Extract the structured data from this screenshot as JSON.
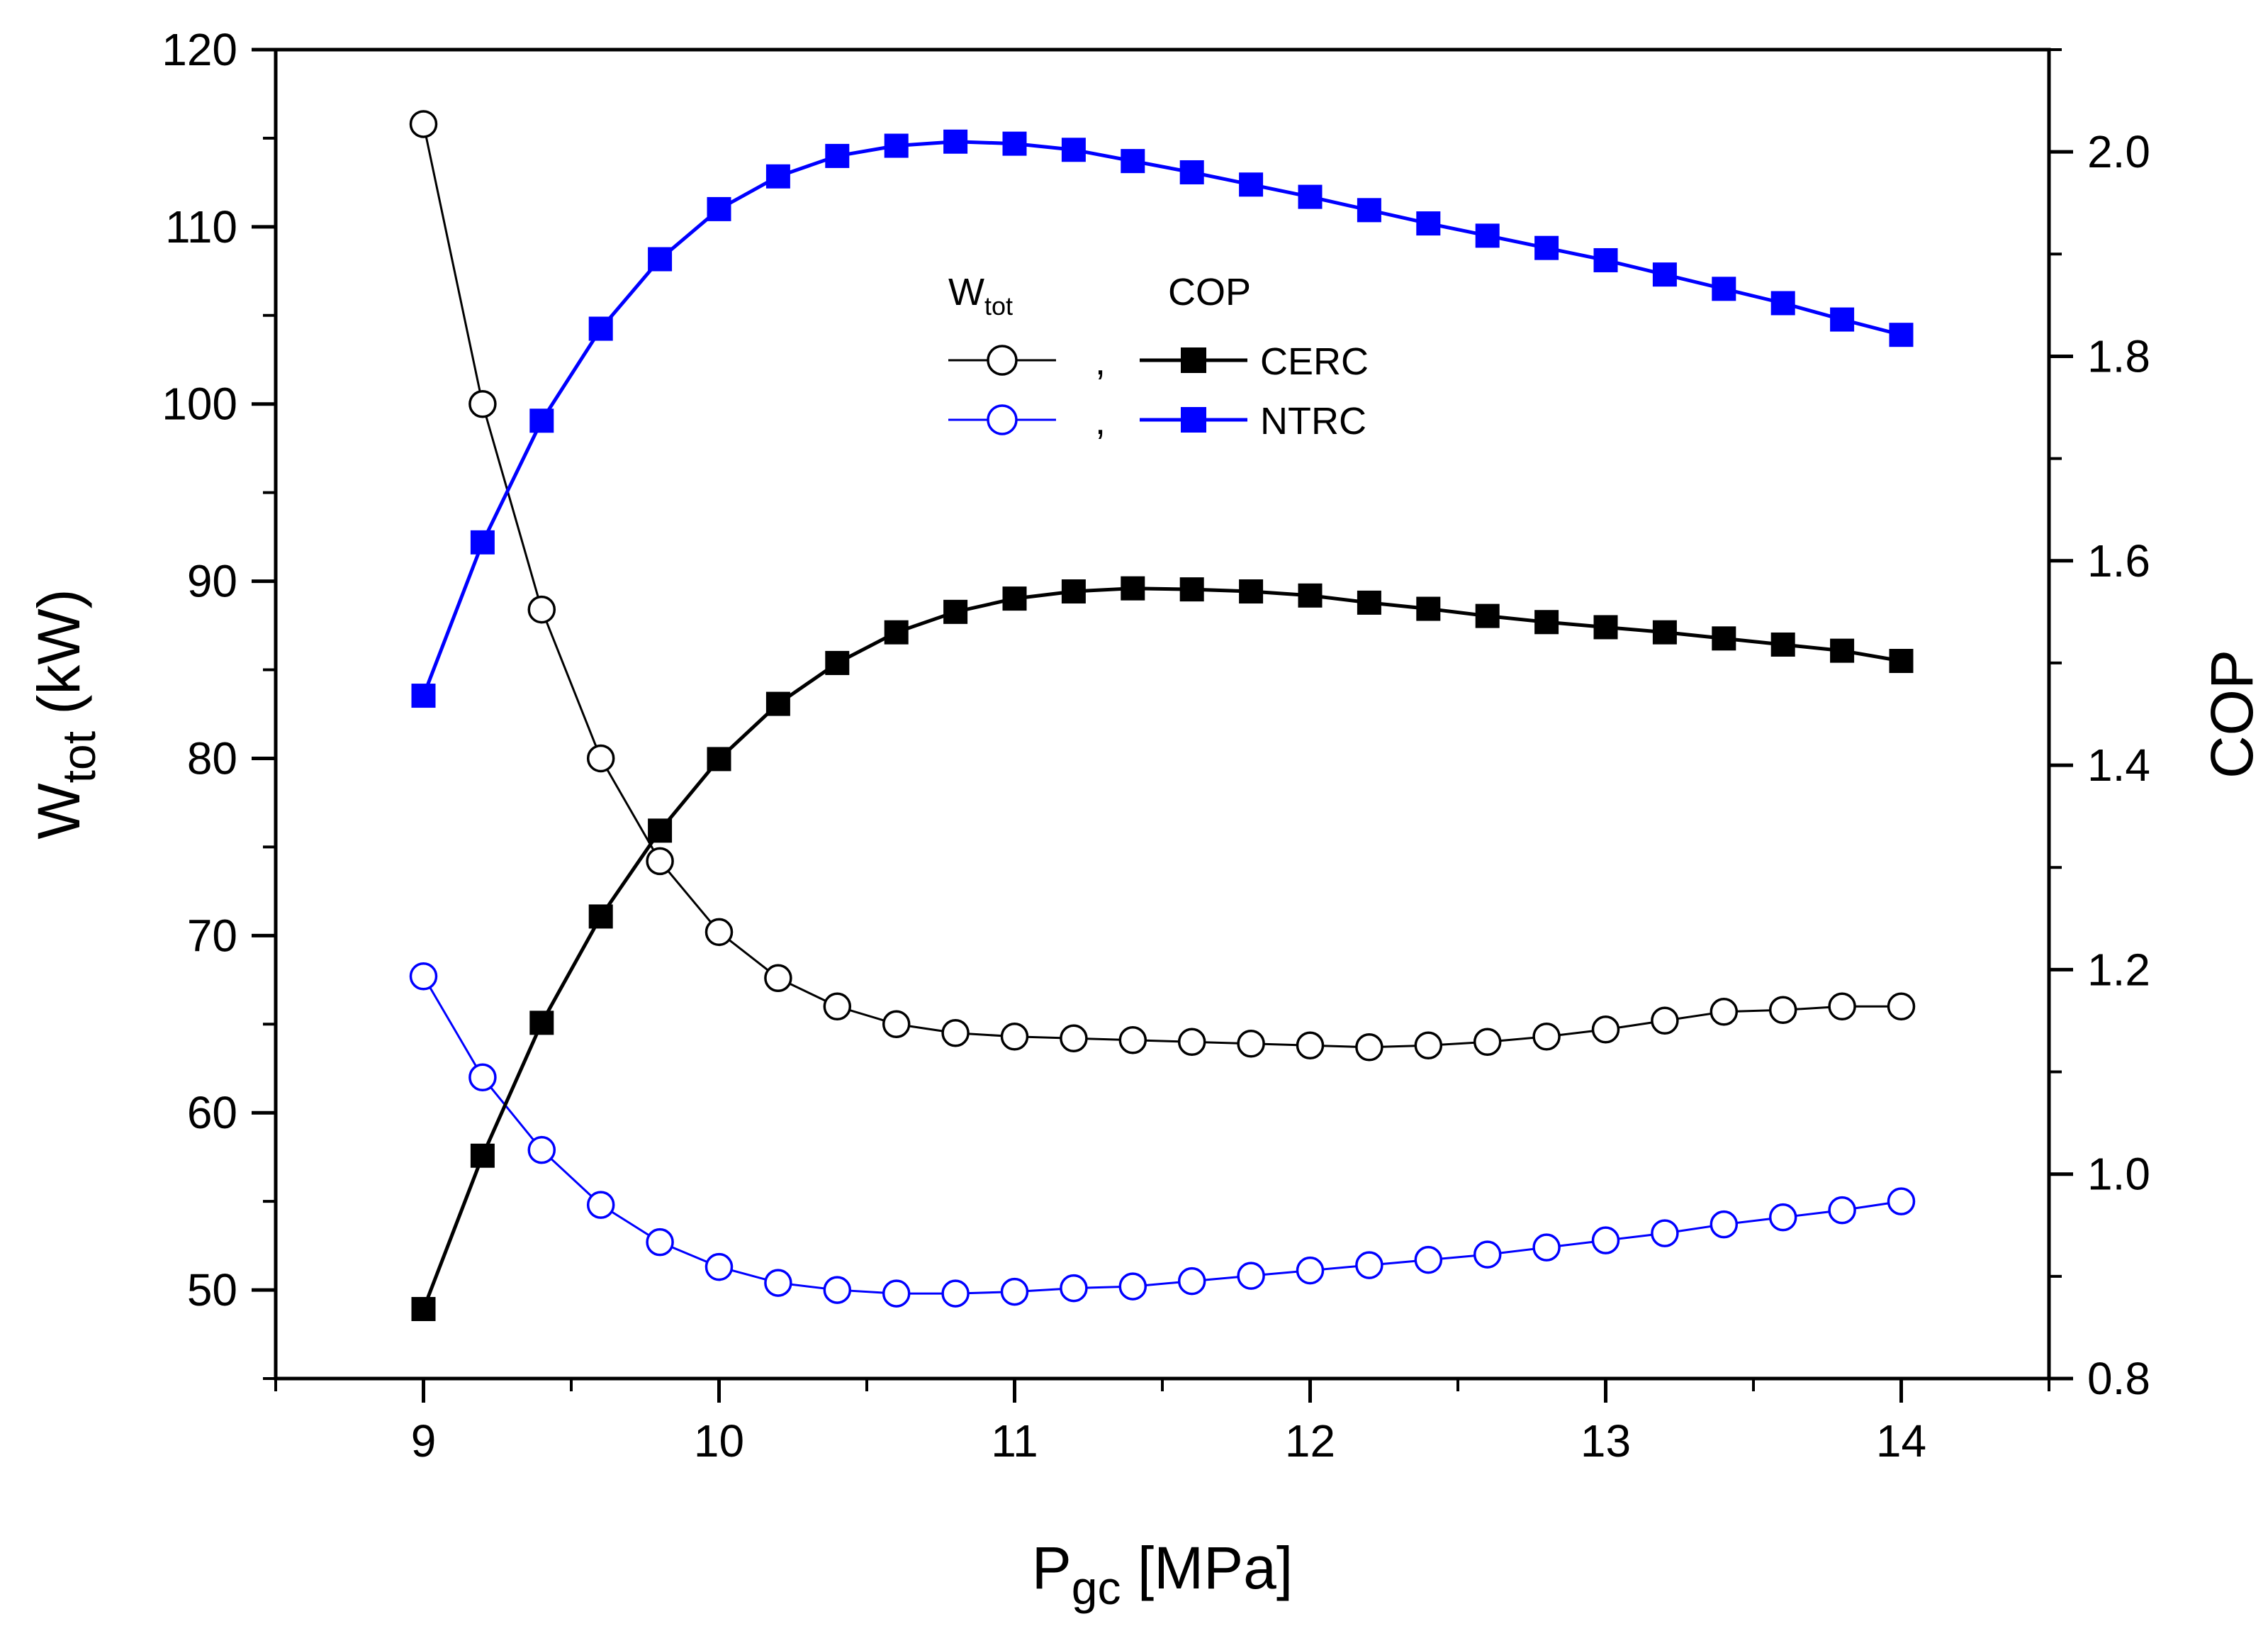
{
  "chart_data": {
    "type": "line",
    "xlabel": {
      "main": "P",
      "sub": "gc",
      "rest": " [MPa]"
    },
    "ylabel_left": {
      "main": "W",
      "sub": "tot",
      "rest": " (kW)"
    },
    "ylabel_right": "COP",
    "xlim": [
      8.5,
      14.5
    ],
    "ylim_left": [
      45,
      120
    ],
    "ylim_right": [
      0.8,
      2.1
    ],
    "x_ticks": [
      9,
      10,
      11,
      12,
      13,
      14
    ],
    "x_tick_labels": [
      "9",
      "10",
      "11",
      "12",
      "13",
      "14"
    ],
    "y_left_ticks": [
      50,
      60,
      70,
      80,
      90,
      100,
      110,
      120
    ],
    "y_left_tick_labels": [
      "50",
      "60",
      "70",
      "80",
      "90",
      "100",
      "110",
      "120"
    ],
    "y_right_ticks": [
      0.8,
      1.0,
      1.2,
      1.4,
      1.6,
      1.8,
      2.0
    ],
    "y_right_tick_labels": [
      "0.8",
      "1.0",
      "1.2",
      "1.4",
      "1.6",
      "1.8",
      "2.0"
    ],
    "x": [
      9.0,
      9.2,
      9.4,
      9.6,
      9.8,
      10.0,
      10.2,
      10.4,
      10.6,
      10.8,
      11.0,
      11.2,
      11.4,
      11.6,
      11.8,
      12.0,
      12.2,
      12.4,
      12.6,
      12.8,
      13.0,
      13.2,
      13.4,
      13.6,
      13.8,
      14.0
    ],
    "series": [
      {
        "name": "W_tot CERC",
        "axis": "left",
        "color": "#000000",
        "marker": "open-circle",
        "values": [
          115.8,
          100.0,
          88.4,
          80.0,
          74.2,
          70.2,
          67.6,
          66.0,
          65.0,
          64.5,
          64.3,
          64.2,
          64.1,
          64.0,
          63.9,
          63.8,
          63.7,
          63.8,
          64.0,
          64.3,
          64.7,
          65.2,
          65.7,
          65.8,
          66.0,
          66.0
        ]
      },
      {
        "name": "W_tot NTRC",
        "axis": "left",
        "color": "#0000ff",
        "marker": "open-circle",
        "values": [
          67.7,
          62.0,
          57.9,
          54.8,
          52.7,
          51.3,
          50.4,
          50.0,
          49.8,
          49.8,
          49.9,
          50.1,
          50.2,
          50.5,
          50.8,
          51.1,
          51.4,
          51.7,
          52.0,
          52.4,
          52.8,
          53.2,
          53.7,
          54.1,
          54.5,
          55.0
        ]
      },
      {
        "name": "COP CERC",
        "axis": "right",
        "color": "#000000",
        "marker": "filled-square",
        "values": [
          0.868,
          1.018,
          1.148,
          1.252,
          1.336,
          1.406,
          1.46,
          1.5,
          1.53,
          1.55,
          1.563,
          1.57,
          1.573,
          1.572,
          1.57,
          1.566,
          1.559,
          1.553,
          1.546,
          1.54,
          1.535,
          1.53,
          1.524,
          1.518,
          1.512,
          1.502
        ]
      },
      {
        "name": "COP NTRC",
        "axis": "right",
        "color": "#0000ff",
        "marker": "filled-square",
        "values": [
          1.468,
          1.618,
          1.737,
          1.827,
          1.895,
          1.944,
          1.976,
          1.996,
          2.006,
          2.01,
          2.008,
          2.002,
          1.991,
          1.98,
          1.968,
          1.956,
          1.943,
          1.93,
          1.918,
          1.906,
          1.894,
          1.88,
          1.866,
          1.852,
          1.836,
          1.821
        ]
      }
    ],
    "legend": {
      "header_w": {
        "main": "W",
        "sub": "tot"
      },
      "header_cop": "COP",
      "separator": ",",
      "rows": [
        {
          "label": "CERC",
          "color": "#000000"
        },
        {
          "label": "NTRC",
          "color": "#0000ff"
        }
      ],
      "placement": "top-center"
    },
    "colors": {
      "cerc": "#000000",
      "ntrc": "#0000ff",
      "axis": "#000000",
      "background": "#ffffff"
    }
  }
}
